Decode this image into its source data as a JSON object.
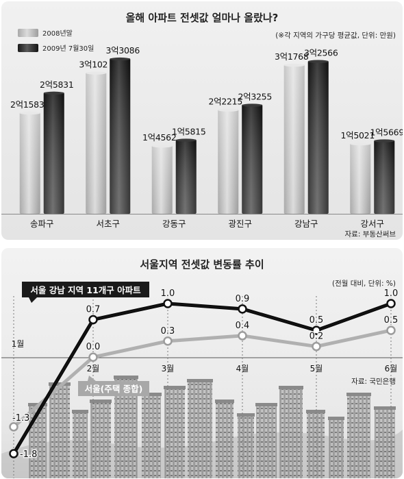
{
  "chart_data": [
    {
      "type": "bar",
      "title": "올해 아파트 전셋값 얼마나 올랐나?",
      "unit_note": "(※각 지역의 가구당 평균값, 단위: 만원)",
      "source": "자료: 부동산써브",
      "legend": {
        "placement": "top-left"
      },
      "categories": [
        "송파구",
        "서초구",
        "강동구",
        "광진구",
        "강남구",
        "강서구"
      ],
      "series": [
        {
          "name": "2008년말",
          "color": "#b8b8b8",
          "values": [
            21583,
            30102,
            14562,
            22215,
            31768,
            15021
          ],
          "labels": [
            "2억1583",
            "3억102",
            "1억4562",
            "2억2215",
            "3억1768",
            "1억5021"
          ]
        },
        {
          "name": "2009년 7월30일",
          "color": "#2b2b2b",
          "values": [
            25831,
            33086,
            15815,
            23255,
            32566,
            15669
          ],
          "labels": [
            "2억5831",
            "3억3086",
            "1억5815",
            "2억3255",
            "3억2566",
            "1억5669"
          ]
        }
      ],
      "ylim": [
        0,
        35000
      ],
      "grid": false
    },
    {
      "type": "line",
      "title": "서울지역 전셋값 변동률 추이",
      "unit_note": "(전월 대비, 단위: %)",
      "source": "자료: 국민은행",
      "x": [
        "1월",
        "2월",
        "3월",
        "4월",
        "5월",
        "6월"
      ],
      "series": [
        {
          "name": "서울 강남 지역 11개구 아파트",
          "color": "#111111",
          "values": [
            -1.8,
            0.7,
            1.0,
            0.9,
            0.5,
            1.0
          ],
          "labels": [
            "-1.8",
            "0.7",
            "1.0",
            "0.9",
            "0.5",
            "1.0"
          ]
        },
        {
          "name": "서울(주택 종합)",
          "color": "#bdbdbd",
          "values": [
            -1.3,
            0.0,
            0.3,
            0.4,
            0.2,
            0.5
          ],
          "labels": [
            "-1.3",
            "0.0",
            "0.3",
            "0.4",
            "0.2",
            "0.5"
          ]
        }
      ],
      "ylim": [
        -1.8,
        1.0
      ],
      "grid": true,
      "background_image": "city-apartments-photo"
    }
  ]
}
